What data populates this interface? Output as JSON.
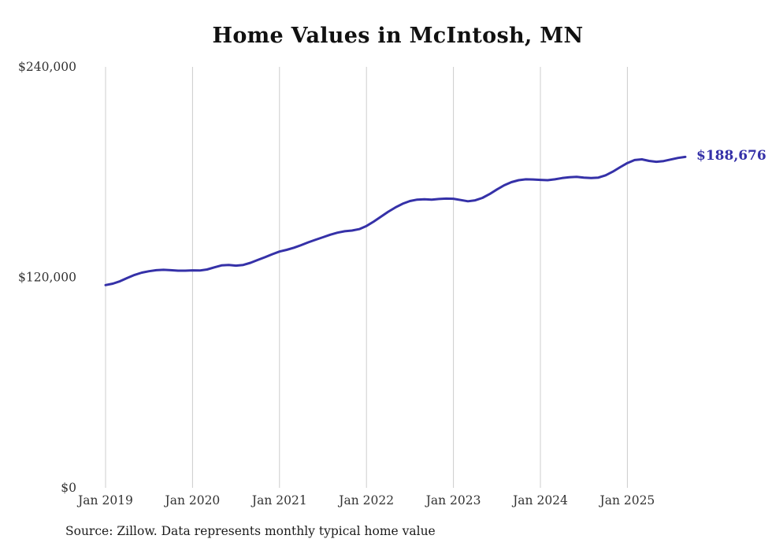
{
  "source": "Source: Zillow. Data represents monthly typical home value",
  "chart_data": {
    "type": "line",
    "title": "Home Values in McIntosh, MN",
    "series_name": "Monthly typical home value",
    "xlabel": "",
    "ylabel": "",
    "x_start_month": "Jan 2019",
    "x_end_month": "Sep 2025",
    "x_tick_labels": [
      "Jan 2019",
      "Jan 2020",
      "Jan 2021",
      "Jan 2022",
      "Jan 2023",
      "Jan 2024",
      "Jan 2025"
    ],
    "x_tick_month_indices": [
      0,
      12,
      24,
      36,
      48,
      60,
      72
    ],
    "y_ticks": [
      {
        "value": 0,
        "label": "$0"
      },
      {
        "value": 120000,
        "label": "$120,000"
      },
      {
        "value": 240000,
        "label": "$240,000"
      }
    ],
    "ylim": [
      0,
      240000
    ],
    "grid": "vertical-only",
    "legend": "none",
    "end_label": "$188,676",
    "latest_value": 188676,
    "line_color": "#3531a8",
    "grid_color": "#cccccc",
    "values": [
      115600,
      116400,
      117800,
      119700,
      121400,
      122700,
      123500,
      124100,
      124300,
      124100,
      123800,
      123800,
      124000,
      123900,
      124500,
      125700,
      126800,
      127100,
      126700,
      127100,
      128300,
      129900,
      131500,
      133200,
      134700,
      135700,
      136900,
      138400,
      140000,
      141500,
      142900,
      144300,
      145500,
      146300,
      146700,
      147500,
      149300,
      151800,
      154600,
      157400,
      159900,
      162000,
      163500,
      164300,
      164500,
      164300,
      164700,
      164900,
      164800,
      164100,
      163400,
      163900,
      165300,
      167500,
      170100,
      172500,
      174300,
      175400,
      175900,
      175800,
      175600,
      175400,
      175900,
      176600,
      177100,
      177300,
      176900,
      176600,
      176900,
      178200,
      180300,
      182800,
      185200,
      186900,
      187300,
      186400,
      185900,
      186300,
      187200,
      188100,
      188676
    ]
  }
}
